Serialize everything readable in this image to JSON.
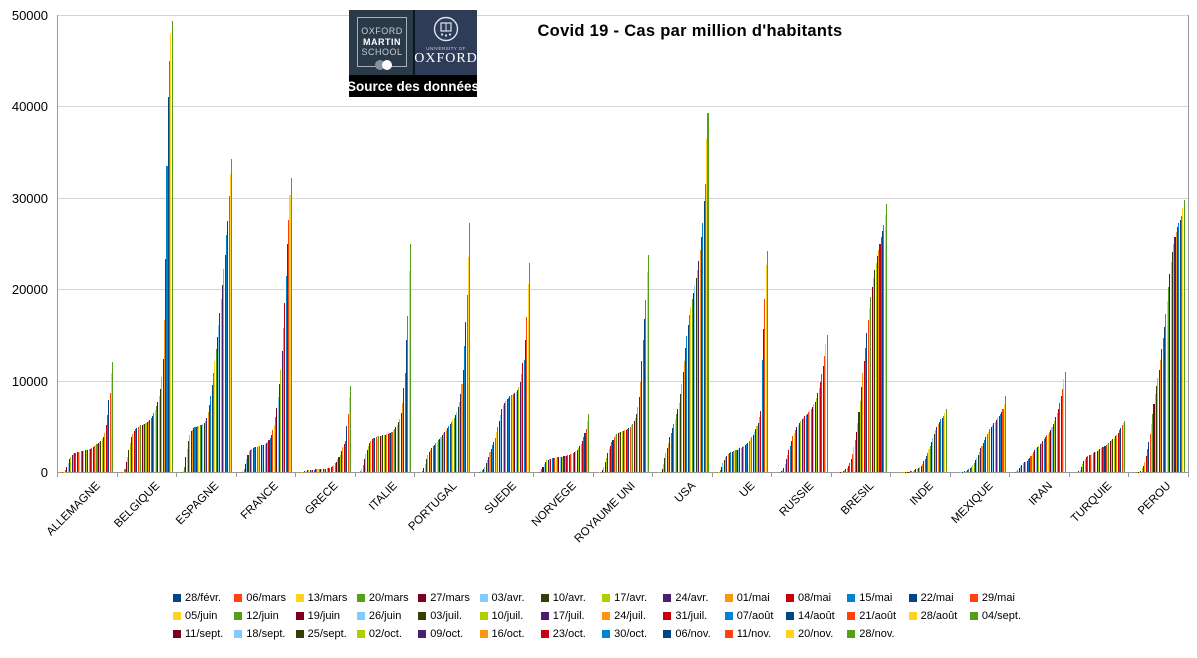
{
  "header": {
    "title": "Covid 19 - Cas par million d'habitants"
  },
  "logo": {
    "oxford": "OXFORD",
    "martin": "MARTIN",
    "school": "SCHOOL",
    "university_of": "UNIVERSITY OF",
    "university_name": "OXFORD",
    "source_label": "Source des données"
  },
  "y_axis": {
    "ticks": [
      0,
      10000,
      20000,
      30000,
      40000,
      50000
    ]
  },
  "legend_rows": [
    14,
    14,
    12
  ],
  "chart_data": {
    "type": "bar",
    "title": "Covid 19 - Cas par million d'habitants",
    "xlabel": "",
    "ylabel": "",
    "ylim": [
      0,
      50000
    ],
    "grid": "horizontal",
    "legend_position": "bottom",
    "palette": [
      "#004586",
      "#ff420e",
      "#ffd320",
      "#579d1c",
      "#7e0021",
      "#83caff",
      "#314004",
      "#aecf00",
      "#4b1f6f",
      "#ff950e",
      "#c5000b",
      "#0084d1"
    ],
    "dates": [
      "28/févr.",
      "06/mars",
      "13/mars",
      "20/mars",
      "27/mars",
      "03/avr.",
      "10/avr.",
      "17/avr.",
      "24/avr.",
      "01/mai",
      "08/mai",
      "15/mai",
      "22/mai",
      "29/mai",
      "05/juin",
      "12/juin",
      "19/juin",
      "26/juin",
      "03/juil.",
      "10/juil.",
      "17/juil.",
      "24/juil.",
      "31/juil.",
      "07/août",
      "14/août",
      "21/août",
      "28/août",
      "04/sept.",
      "11/sept.",
      "18/sept.",
      "25/sept.",
      "02/oct.",
      "09/oct.",
      "16/oct.",
      "23/oct.",
      "30/oct.",
      "06/nov.",
      "11/nov.",
      "20/nov.",
      "28/nov."
    ],
    "categories": [
      "ALLEMAGNE",
      "BELGIQUE",
      "ESPAGNE",
      "FRANCE",
      "GRECE",
      "ITALIE",
      "PORTUGAL",
      "SUEDE",
      "NORVEGE",
      "ROYAUME UNI",
      "USA",
      "UE",
      "RUSSIE",
      "BRESIL",
      "INDE",
      "MEXIQUE",
      "IRAN",
      "TURQUIE",
      "PEROU"
    ],
    "countries": [
      {
        "name": "ALLEMAGNE",
        "values": [
          1,
          8,
          40,
          240,
          600,
          1010,
          1440,
          1670,
          1850,
          1970,
          2050,
          2110,
          2150,
          2185,
          2215,
          2250,
          2280,
          2320,
          2360,
          2400,
          2440,
          2490,
          2555,
          2640,
          2745,
          2860,
          2980,
          3080,
          3190,
          3310,
          3440,
          3590,
          3830,
          4300,
          5200,
          6200,
          7900,
          8700,
          10800,
          12000
        ]
      },
      {
        "name": "BELGIQUE",
        "values": [
          1,
          10,
          60,
          350,
          1050,
          1700,
          2400,
          3150,
          3800,
          4200,
          4480,
          4670,
          4820,
          4940,
          5030,
          5110,
          5170,
          5230,
          5290,
          5360,
          5450,
          5570,
          5720,
          5900,
          6150,
          6450,
          6800,
          7200,
          7700,
          8350,
          9100,
          10400,
          12400,
          16600,
          23300,
          33500,
          41000,
          45000,
          47900,
          49300
        ]
      },
      {
        "name": "ESPAGNE",
        "values": [
          1,
          15,
          120,
          550,
          1600,
          2550,
          3400,
          4050,
          4450,
          4650,
          4800,
          4900,
          4980,
          5040,
          5090,
          5140,
          5190,
          5270,
          5390,
          5580,
          5950,
          6550,
          7350,
          8300,
          9550,
          10850,
          12150,
          13450,
          14750,
          16050,
          17400,
          18900,
          20500,
          22200,
          23800,
          25900,
          27500,
          30200,
          32600,
          34200
        ]
      },
      {
        "name": "FRANCE",
        "values": [
          1,
          10,
          70,
          330,
          900,
          1400,
          1900,
          2250,
          2450,
          2560,
          2640,
          2700,
          2750,
          2790,
          2830,
          2870,
          2910,
          2950,
          3000,
          3070,
          3160,
          3300,
          3500,
          3760,
          4100,
          4600,
          5200,
          6000,
          7000,
          8200,
          9600,
          11200,
          13200,
          15800,
          18500,
          21500,
          25000,
          27600,
          30300,
          32200
        ]
      },
      {
        "name": "GRECE",
        "values": [
          0,
          1,
          10,
          45,
          85,
          130,
          190,
          215,
          235,
          250,
          262,
          272,
          280,
          287,
          293,
          300,
          310,
          322,
          338,
          355,
          380,
          410,
          435,
          465,
          550,
          650,
          780,
          950,
          1150,
          1400,
          1650,
          1900,
          2250,
          2700,
          3100,
          3400,
          5000,
          6300,
          8200,
          9400
        ]
      },
      {
        "name": "ITALIE",
        "values": [
          3,
          65,
          290,
          780,
          1430,
          2000,
          2440,
          2800,
          3150,
          3400,
          3570,
          3700,
          3780,
          3840,
          3890,
          3930,
          3960,
          3990,
          4010,
          4040,
          4070,
          4110,
          4160,
          4220,
          4310,
          4420,
          4560,
          4720,
          4920,
          5180,
          5480,
          5850,
          6450,
          7550,
          9200,
          10800,
          14400,
          17100,
          22000,
          25000
        ]
      },
      {
        "name": "PORTUGAL",
        "values": [
          0,
          1,
          11,
          100,
          420,
          900,
          1470,
          1900,
          2200,
          2460,
          2680,
          2850,
          3010,
          3160,
          3310,
          3480,
          3660,
          3850,
          4040,
          4230,
          4420,
          4620,
          4840,
          5060,
          5270,
          5480,
          5700,
          5950,
          6250,
          6620,
          7100,
          7700,
          8500,
          9600,
          11200,
          13800,
          16400,
          19400,
          23500,
          27300
        ]
      },
      {
        "name": "SUEDE",
        "values": [
          1,
          15,
          80,
          170,
          300,
          600,
          990,
          1320,
          1700,
          2150,
          2550,
          2950,
          3300,
          3750,
          4350,
          4950,
          5600,
          6250,
          6900,
          7350,
          7600,
          7800,
          8000,
          8150,
          8300,
          8400,
          8480,
          8550,
          8650,
          8800,
          9000,
          9300,
          9800,
          10700,
          11900,
          12300,
          14400,
          17000,
          20600,
          22900
        ]
      },
      {
        "name": "NORVEGE",
        "values": [
          1,
          20,
          140,
          350,
          600,
          900,
          1140,
          1270,
          1350,
          1420,
          1480,
          1510,
          1540,
          1560,
          1580,
          1600,
          1630,
          1650,
          1670,
          1690,
          1720,
          1760,
          1800,
          1840,
          1890,
          1950,
          2010,
          2080,
          2160,
          2280,
          2430,
          2600,
          2800,
          3100,
          3400,
          3800,
          4300,
          4700,
          5600,
          6300
        ]
      },
      {
        "name": "ROYAUME UNI",
        "values": [
          0,
          2,
          12,
          60,
          220,
          570,
          1080,
          1570,
          2080,
          2540,
          2900,
          3250,
          3550,
          3800,
          4000,
          4150,
          4250,
          4330,
          4400,
          4450,
          4500,
          4560,
          4630,
          4720,
          4820,
          4950,
          5100,
          5300,
          5550,
          5900,
          6400,
          7100,
          8200,
          9900,
          12100,
          14400,
          16700,
          18800,
          21900,
          23800
        ]
      },
      {
        "name": "USA",
        "values": [
          0,
          1,
          7,
          60,
          310,
          830,
          1500,
          2100,
          2650,
          3200,
          3800,
          4300,
          4800,
          5300,
          5800,
          6300,
          6900,
          7600,
          8500,
          9600,
          10900,
          12200,
          13600,
          14900,
          16100,
          17200,
          18100,
          18900,
          19600,
          20400,
          21200,
          22100,
          23100,
          24300,
          25700,
          27300,
          29700,
          31500,
          36400,
          39300
        ]
      },
      {
        "name": "UE",
        "values": [
          1,
          10,
          50,
          230,
          600,
          1000,
          1350,
          1600,
          1800,
          1950,
          2060,
          2150,
          2220,
          2280,
          2340,
          2400,
          2460,
          2520,
          2580,
          2650,
          2730,
          2830,
          2950,
          3080,
          3230,
          3400,
          3600,
          3830,
          4100,
          4400,
          4700,
          5000,
          5400,
          6050,
          6700,
          12250,
          15700,
          18900,
          22650,
          24200
        ]
      },
      {
        "name": "RUSSIE",
        "values": [
          0,
          0,
          2,
          17,
          70,
          200,
          480,
          930,
          1400,
          1900,
          2400,
          2900,
          3400,
          3900,
          4300,
          4650,
          4950,
          5200,
          5400,
          5600,
          5800,
          5950,
          6100,
          6250,
          6400,
          6550,
          6700,
          6900,
          7100,
          7400,
          7700,
          8100,
          8600,
          9200,
          9900,
          10700,
          11600,
          12700,
          14000,
          15000
        ]
      },
      {
        "name": "BRESIL",
        "values": [
          0,
          0,
          1,
          5,
          17,
          45,
          90,
          170,
          280,
          430,
          640,
          950,
          1400,
          2000,
          2700,
          3500,
          4400,
          5400,
          6600,
          7800,
          9300,
          10800,
          12200,
          13600,
          15200,
          16600,
          17900,
          19100,
          20200,
          21200,
          22100,
          22900,
          23600,
          24300,
          25000,
          25700,
          26400,
          27000,
          28100,
          29300
        ]
      },
      {
        "name": "INDE",
        "values": [
          0,
          0,
          0,
          0,
          1,
          2,
          5,
          10,
          17,
          26,
          42,
          60,
          85,
          120,
          165,
          215,
          290,
          365,
          460,
          570,
          700,
          900,
          1170,
          1440,
          1780,
          2130,
          2500,
          2900,
          3300,
          3750,
          4200,
          4600,
          4950,
          5250,
          5500,
          5750,
          5950,
          6150,
          6500,
          6900
        ]
      },
      {
        "name": "MEXIQUE",
        "values": [
          0,
          0,
          0,
          1,
          4,
          12,
          27,
          48,
          80,
          150,
          230,
          330,
          450,
          600,
          780,
          1000,
          1280,
          1580,
          1900,
          2240,
          2580,
          2900,
          3230,
          3550,
          3850,
          4150,
          4430,
          4670,
          4900,
          5120,
          5320,
          5520,
          5720,
          5930,
          6150,
          6380,
          6620,
          6850,
          7400,
          8300
        ]
      },
      {
        "name": "IRAN",
        "values": [
          1,
          55,
          130,
          240,
          420,
          630,
          810,
          940,
          1050,
          1130,
          1210,
          1380,
          1580,
          1800,
          2000,
          2200,
          2400,
          2580,
          2750,
          2900,
          3050,
          3220,
          3400,
          3600,
          3800,
          4000,
          4200,
          4400,
          4650,
          4950,
          5250,
          5600,
          6000,
          6450,
          6950,
          7550,
          8300,
          9100,
          10200,
          11000
        ]
      },
      {
        "name": "TURQUIE",
        "values": [
          0,
          0,
          0,
          4,
          65,
          250,
          560,
          930,
          1230,
          1440,
          1600,
          1720,
          1820,
          1900,
          1980,
          2060,
          2140,
          2230,
          2320,
          2410,
          2500,
          2590,
          2690,
          2790,
          2900,
          3010,
          3120,
          3230,
          3350,
          3480,
          3620,
          3770,
          3930,
          4100,
          4300,
          4550,
          4850,
          5100,
          5350,
          5600
        ]
      },
      {
        "name": "PEROU",
        "values": [
          0,
          0,
          1,
          8,
          20,
          45,
          160,
          400,
          650,
          1100,
          1800,
          2500,
          3300,
          4200,
          5300,
          6400,
          7500,
          8500,
          9400,
          10300,
          11200,
          12300,
          13500,
          14700,
          15900,
          17300,
          18700,
          20300,
          21700,
          23000,
          24100,
          25000,
          25700,
          26300,
          26800,
          27200,
          27600,
          28000,
          28900,
          29800
        ]
      }
    ]
  }
}
